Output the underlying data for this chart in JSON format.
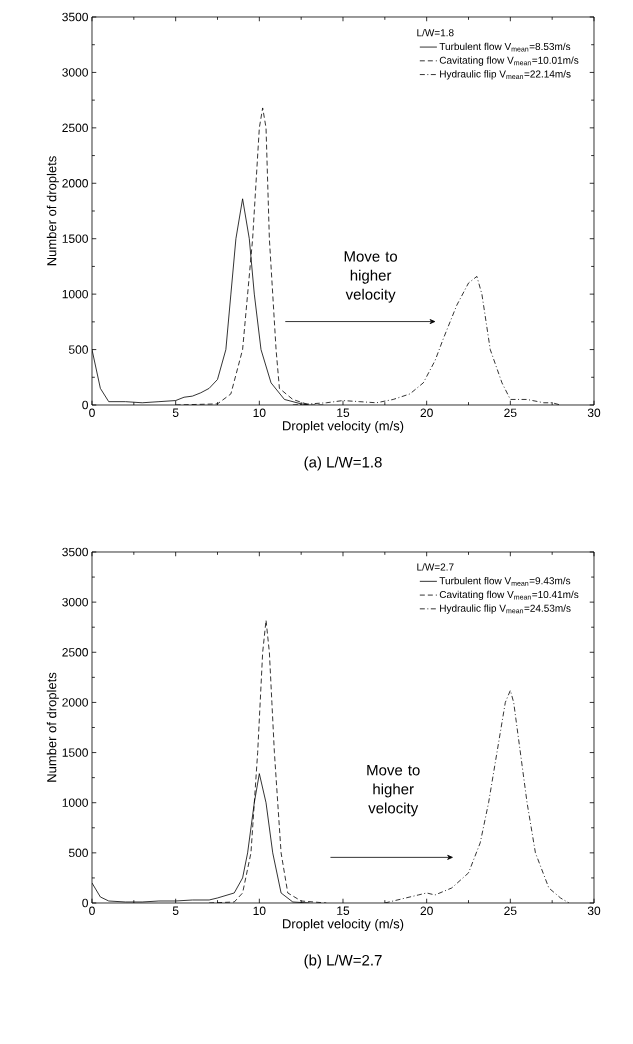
{
  "chart_data": [
    {
      "type": "line",
      "xlabel": "Droplet velocity (m/s)",
      "ylabel": "Number of droplets",
      "legend_title": "L/W=1.8",
      "annotations": [
        "(a) L/W=1.8",
        "Move to higher velocity"
      ],
      "xlim": [
        0,
        30
      ],
      "ylim": [
        0,
        3500
      ],
      "xticks": [
        0,
        5,
        10,
        15,
        20,
        25,
        30
      ],
      "yticks": [
        0,
        500,
        1000,
        1500,
        2000,
        2500,
        3000,
        3500
      ],
      "legend": "top right",
      "series": [
        {
          "name": "Turbulent flow V$_{mean}$=8.53m/s",
          "color": "#000000",
          "line_style": "solid",
          "x": [
            0,
            0.5,
            1,
            2,
            3,
            4,
            5,
            5.5,
            6,
            6.5,
            7,
            7.5,
            8,
            8.3,
            8.6,
            9,
            9.4,
            9.7,
            10.1,
            10.7,
            11.5,
            12.5,
            13
          ],
          "values": [
            500,
            150,
            30,
            30,
            20,
            30,
            40,
            70,
            80,
            110,
            150,
            230,
            500,
            1000,
            1500,
            1860,
            1500,
            1000,
            500,
            200,
            50,
            10,
            0
          ]
        },
        {
          "name": "Cavitating flow V$_{mean}$=10.01m/s",
          "color": "#000000",
          "line_style": "dashed",
          "x": [
            5,
            7.5,
            8.3,
            9,
            9.3,
            9.6,
            9.8,
            10,
            10.2,
            10.4,
            10.5,
            10.6,
            10.8,
            11,
            11.2,
            12,
            13,
            14
          ],
          "values": [
            0,
            10,
            100,
            500,
            1000,
            1500,
            2000,
            2500,
            2680,
            2500,
            2000,
            1500,
            1000,
            500,
            150,
            50,
            0,
            0
          ]
        },
        {
          "name": "Hydraulic flip V$_{mean}$=22.14m/s",
          "color": "#000000",
          "line_style": "dashdot",
          "x": [
            12,
            13,
            14,
            15,
            16,
            17,
            18,
            19,
            19.8,
            20.5,
            21,
            21.8,
            22.5,
            23,
            23.3,
            23.8,
            24.5,
            25,
            26,
            27,
            27.5,
            28
          ],
          "values": [
            0,
            10,
            20,
            40,
            30,
            20,
            50,
            100,
            200,
            400,
            600,
            900,
            1100,
            1160,
            1000,
            500,
            200,
            50,
            50,
            20,
            20,
            0
          ]
        }
      ]
    },
    {
      "type": "line",
      "xlabel": "Droplet velocity (m/s)",
      "ylabel": "Number of droplets",
      "legend_title": "L/W=2.7",
      "annotations": [
        "(b) L/W=2.7",
        "Move to higher velocity"
      ],
      "xlim": [
        0,
        30
      ],
      "ylim": [
        0,
        3500
      ],
      "xticks": [
        0,
        5,
        10,
        15,
        20,
        25,
        30
      ],
      "yticks": [
        0,
        500,
        1000,
        1500,
        2000,
        2500,
        3000,
        3500
      ],
      "legend": "top right",
      "series": [
        {
          "name": "Turbulent flow V$_{mean}$=9.43m/s",
          "color": "#000000",
          "line_style": "solid",
          "x": [
            0,
            0.5,
            1,
            2,
            3,
            4,
            5,
            6,
            7,
            7.5,
            8.5,
            9,
            9.3,
            9.7,
            10,
            10.4,
            10.8,
            11.3,
            12,
            13
          ],
          "values": [
            200,
            60,
            20,
            10,
            10,
            20,
            20,
            30,
            30,
            50,
            100,
            250,
            500,
            1000,
            1290,
            1000,
            500,
            100,
            10,
            0
          ]
        },
        {
          "name": "Cavitating flow V$_{mean}$=10.41m/s",
          "color": "#000000",
          "line_style": "dashed",
          "x": [
            7,
            8.5,
            9,
            9.5,
            9.7,
            9.9,
            10.05,
            10.2,
            10.4,
            10.6,
            10.75,
            10.9,
            11.1,
            11.3,
            11.7,
            12.5,
            14
          ],
          "values": [
            0,
            10,
            100,
            500,
            1000,
            1500,
            2000,
            2500,
            2820,
            2500,
            2000,
            1500,
            1000,
            500,
            100,
            20,
            0
          ]
        },
        {
          "name": "Hydraulic flip V$_{mean}$=24.53m/s",
          "color": "#000000",
          "line_style": "dashdot",
          "x": [
            17.5,
            19.5,
            20,
            20.5,
            21.5,
            22.5,
            23.2,
            23.7,
            24.2,
            24.7,
            25,
            25.2,
            25.6,
            26,
            26.5,
            27.3,
            28,
            28.5
          ],
          "values": [
            0,
            80,
            100,
            80,
            150,
            300,
            600,
            1000,
            1500,
            2000,
            2120,
            2000,
            1500,
            1000,
            500,
            150,
            50,
            0
          ]
        }
      ]
    }
  ]
}
